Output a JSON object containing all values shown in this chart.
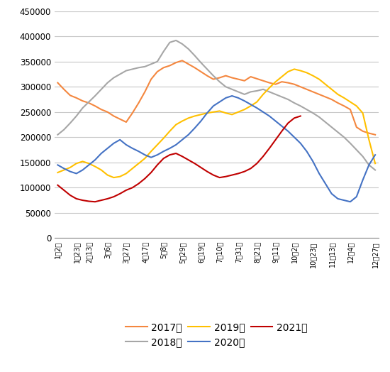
{
  "x_labels": [
    "1月2日",
    "1月23日",
    "2月13日",
    "3月6日",
    "3月27日",
    "4月17日",
    "5月8日",
    "5月29日",
    "6月19日",
    "7月10日",
    "7月31日",
    "8月21日",
    "9月11日",
    "10月2日",
    "10月23日",
    "11月13日",
    "12月4日",
    "12月27日"
  ],
  "series": {
    "2017年": {
      "color": "#F4873F",
      "values": [
        308000,
        295000,
        283000,
        278000,
        272000,
        268000,
        262000,
        255000,
        250000,
        242000,
        236000,
        230000,
        248000,
        268000,
        290000,
        315000,
        330000,
        338000,
        342000,
        348000,
        352000,
        345000,
        338000,
        330000,
        322000,
        315000,
        318000,
        322000,
        318000,
        315000,
        312000,
        320000,
        316000,
        312000,
        308000,
        305000,
        310000,
        308000,
        305000,
        300000,
        295000,
        290000,
        285000,
        280000,
        275000,
        268000,
        262000,
        255000,
        220000,
        212000,
        208000,
        205000
      ]
    },
    "2018年": {
      "color": "#A6A6A6",
      "values": [
        205000,
        215000,
        228000,
        242000,
        258000,
        270000,
        282000,
        295000,
        308000,
        318000,
        325000,
        332000,
        335000,
        338000,
        340000,
        345000,
        350000,
        370000,
        388000,
        392000,
        385000,
        375000,
        362000,
        348000,
        335000,
        322000,
        310000,
        300000,
        295000,
        290000,
        285000,
        290000,
        292000,
        295000,
        290000,
        285000,
        280000,
        275000,
        268000,
        262000,
        255000,
        248000,
        240000,
        230000,
        220000,
        210000,
        200000,
        188000,
        175000,
        162000,
        145000,
        135000
      ]
    },
    "2019年": {
      "color": "#FFC000",
      "values": [
        130000,
        135000,
        140000,
        148000,
        152000,
        148000,
        142000,
        135000,
        125000,
        120000,
        122000,
        128000,
        138000,
        148000,
        158000,
        172000,
        185000,
        198000,
        212000,
        225000,
        232000,
        238000,
        242000,
        245000,
        248000,
        250000,
        252000,
        248000,
        245000,
        250000,
        255000,
        262000,
        270000,
        285000,
        298000,
        310000,
        320000,
        330000,
        335000,
        332000,
        328000,
        322000,
        315000,
        305000,
        295000,
        285000,
        278000,
        270000,
        262000,
        248000,
        195000,
        148000
      ]
    },
    "2020年": {
      "color": "#4472C4",
      "values": [
        145000,
        138000,
        132000,
        128000,
        135000,
        145000,
        155000,
        168000,
        178000,
        188000,
        195000,
        185000,
        178000,
        172000,
        165000,
        160000,
        165000,
        172000,
        178000,
        185000,
        195000,
        205000,
        218000,
        232000,
        248000,
        262000,
        270000,
        278000,
        282000,
        278000,
        272000,
        265000,
        258000,
        250000,
        242000,
        232000,
        222000,
        212000,
        200000,
        188000,
        172000,
        152000,
        128000,
        108000,
        88000,
        78000,
        75000,
        72000,
        82000,
        115000,
        145000,
        165000
      ]
    },
    "2021年": {
      "color": "#C00000",
      "values": [
        105000,
        95000,
        85000,
        78000,
        75000,
        73000,
        72000,
        75000,
        78000,
        82000,
        88000,
        95000,
        100000,
        108000,
        118000,
        130000,
        145000,
        158000,
        165000,
        168000,
        162000,
        155000,
        148000,
        140000,
        132000,
        125000,
        120000,
        122000,
        125000,
        128000,
        132000,
        138000,
        148000,
        162000,
        178000,
        195000,
        212000,
        228000,
        238000,
        242000,
        null,
        null,
        null,
        null,
        null,
        null,
        null,
        null,
        null,
        null,
        null,
        null
      ]
    }
  },
  "n_points": 52,
  "ylim": [
    0,
    450000
  ],
  "yticks": [
    0,
    50000,
    100000,
    150000,
    200000,
    250000,
    300000,
    350000,
    400000,
    450000
  ],
  "tick_positions": [
    0,
    3,
    5,
    8,
    11,
    14,
    17,
    20,
    23,
    26,
    29,
    32,
    35,
    38,
    41,
    44,
    47,
    51
  ],
  "legend_order": [
    "2017年",
    "2018年",
    "2019年",
    "2020年",
    "2021年"
  ],
  "background_color": "#FFFFFF",
  "grid_color": "#C8C8C8"
}
